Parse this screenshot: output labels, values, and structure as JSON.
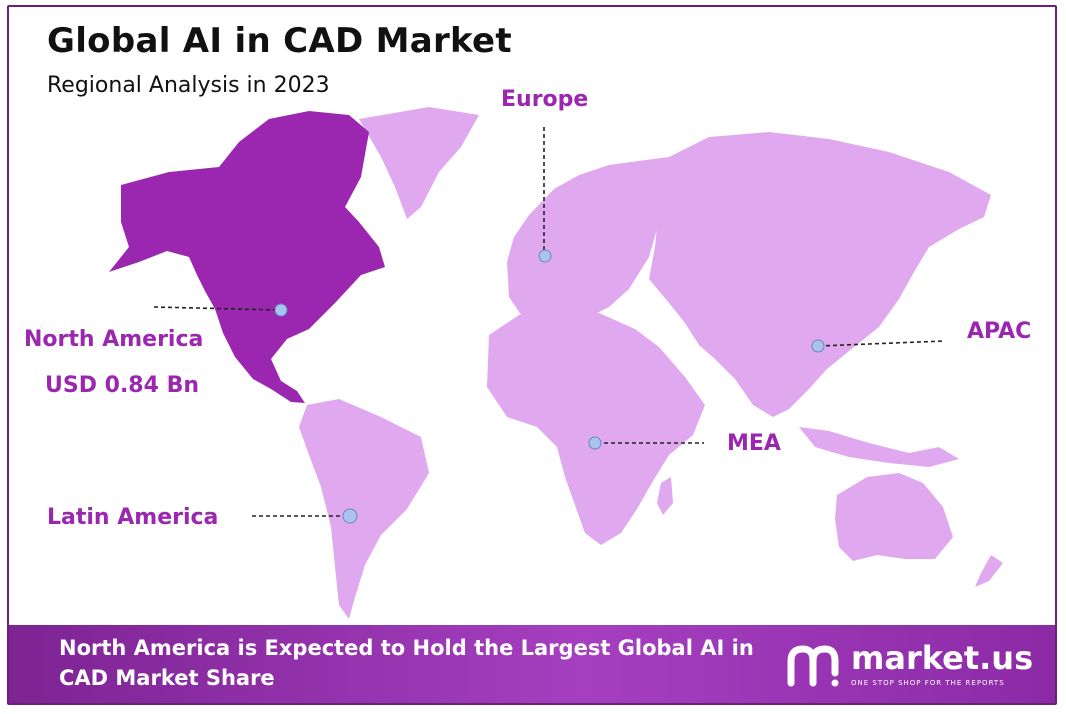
{
  "title": "Global AI in CAD Market",
  "subtitle": "Regional Analysis in 2023",
  "map_data": {
    "colors": {
      "highlight": "#9b27b0",
      "land": "#e0a8ee",
      "label": "#9b27b0",
      "marker": "#a8c4ee"
    },
    "regions": [
      {
        "name": "North America",
        "value": "USD 0.84 Bn",
        "highlighted": true
      },
      {
        "name": "Europe",
        "value": "",
        "highlighted": false
      },
      {
        "name": "APAC",
        "value": "",
        "highlighted": false
      },
      {
        "name": "MEA",
        "value": "",
        "highlighted": false
      },
      {
        "name": "Latin America",
        "value": "",
        "highlighted": false
      }
    ]
  },
  "footer": {
    "text": "North America is Expected to Hold the Largest Global AI in CAD Market Share"
  },
  "logo": {
    "name": "market.us",
    "tagline": "ONE STOP SHOP FOR THE REPORTS",
    "icon": "market-us-logo-icon"
  }
}
